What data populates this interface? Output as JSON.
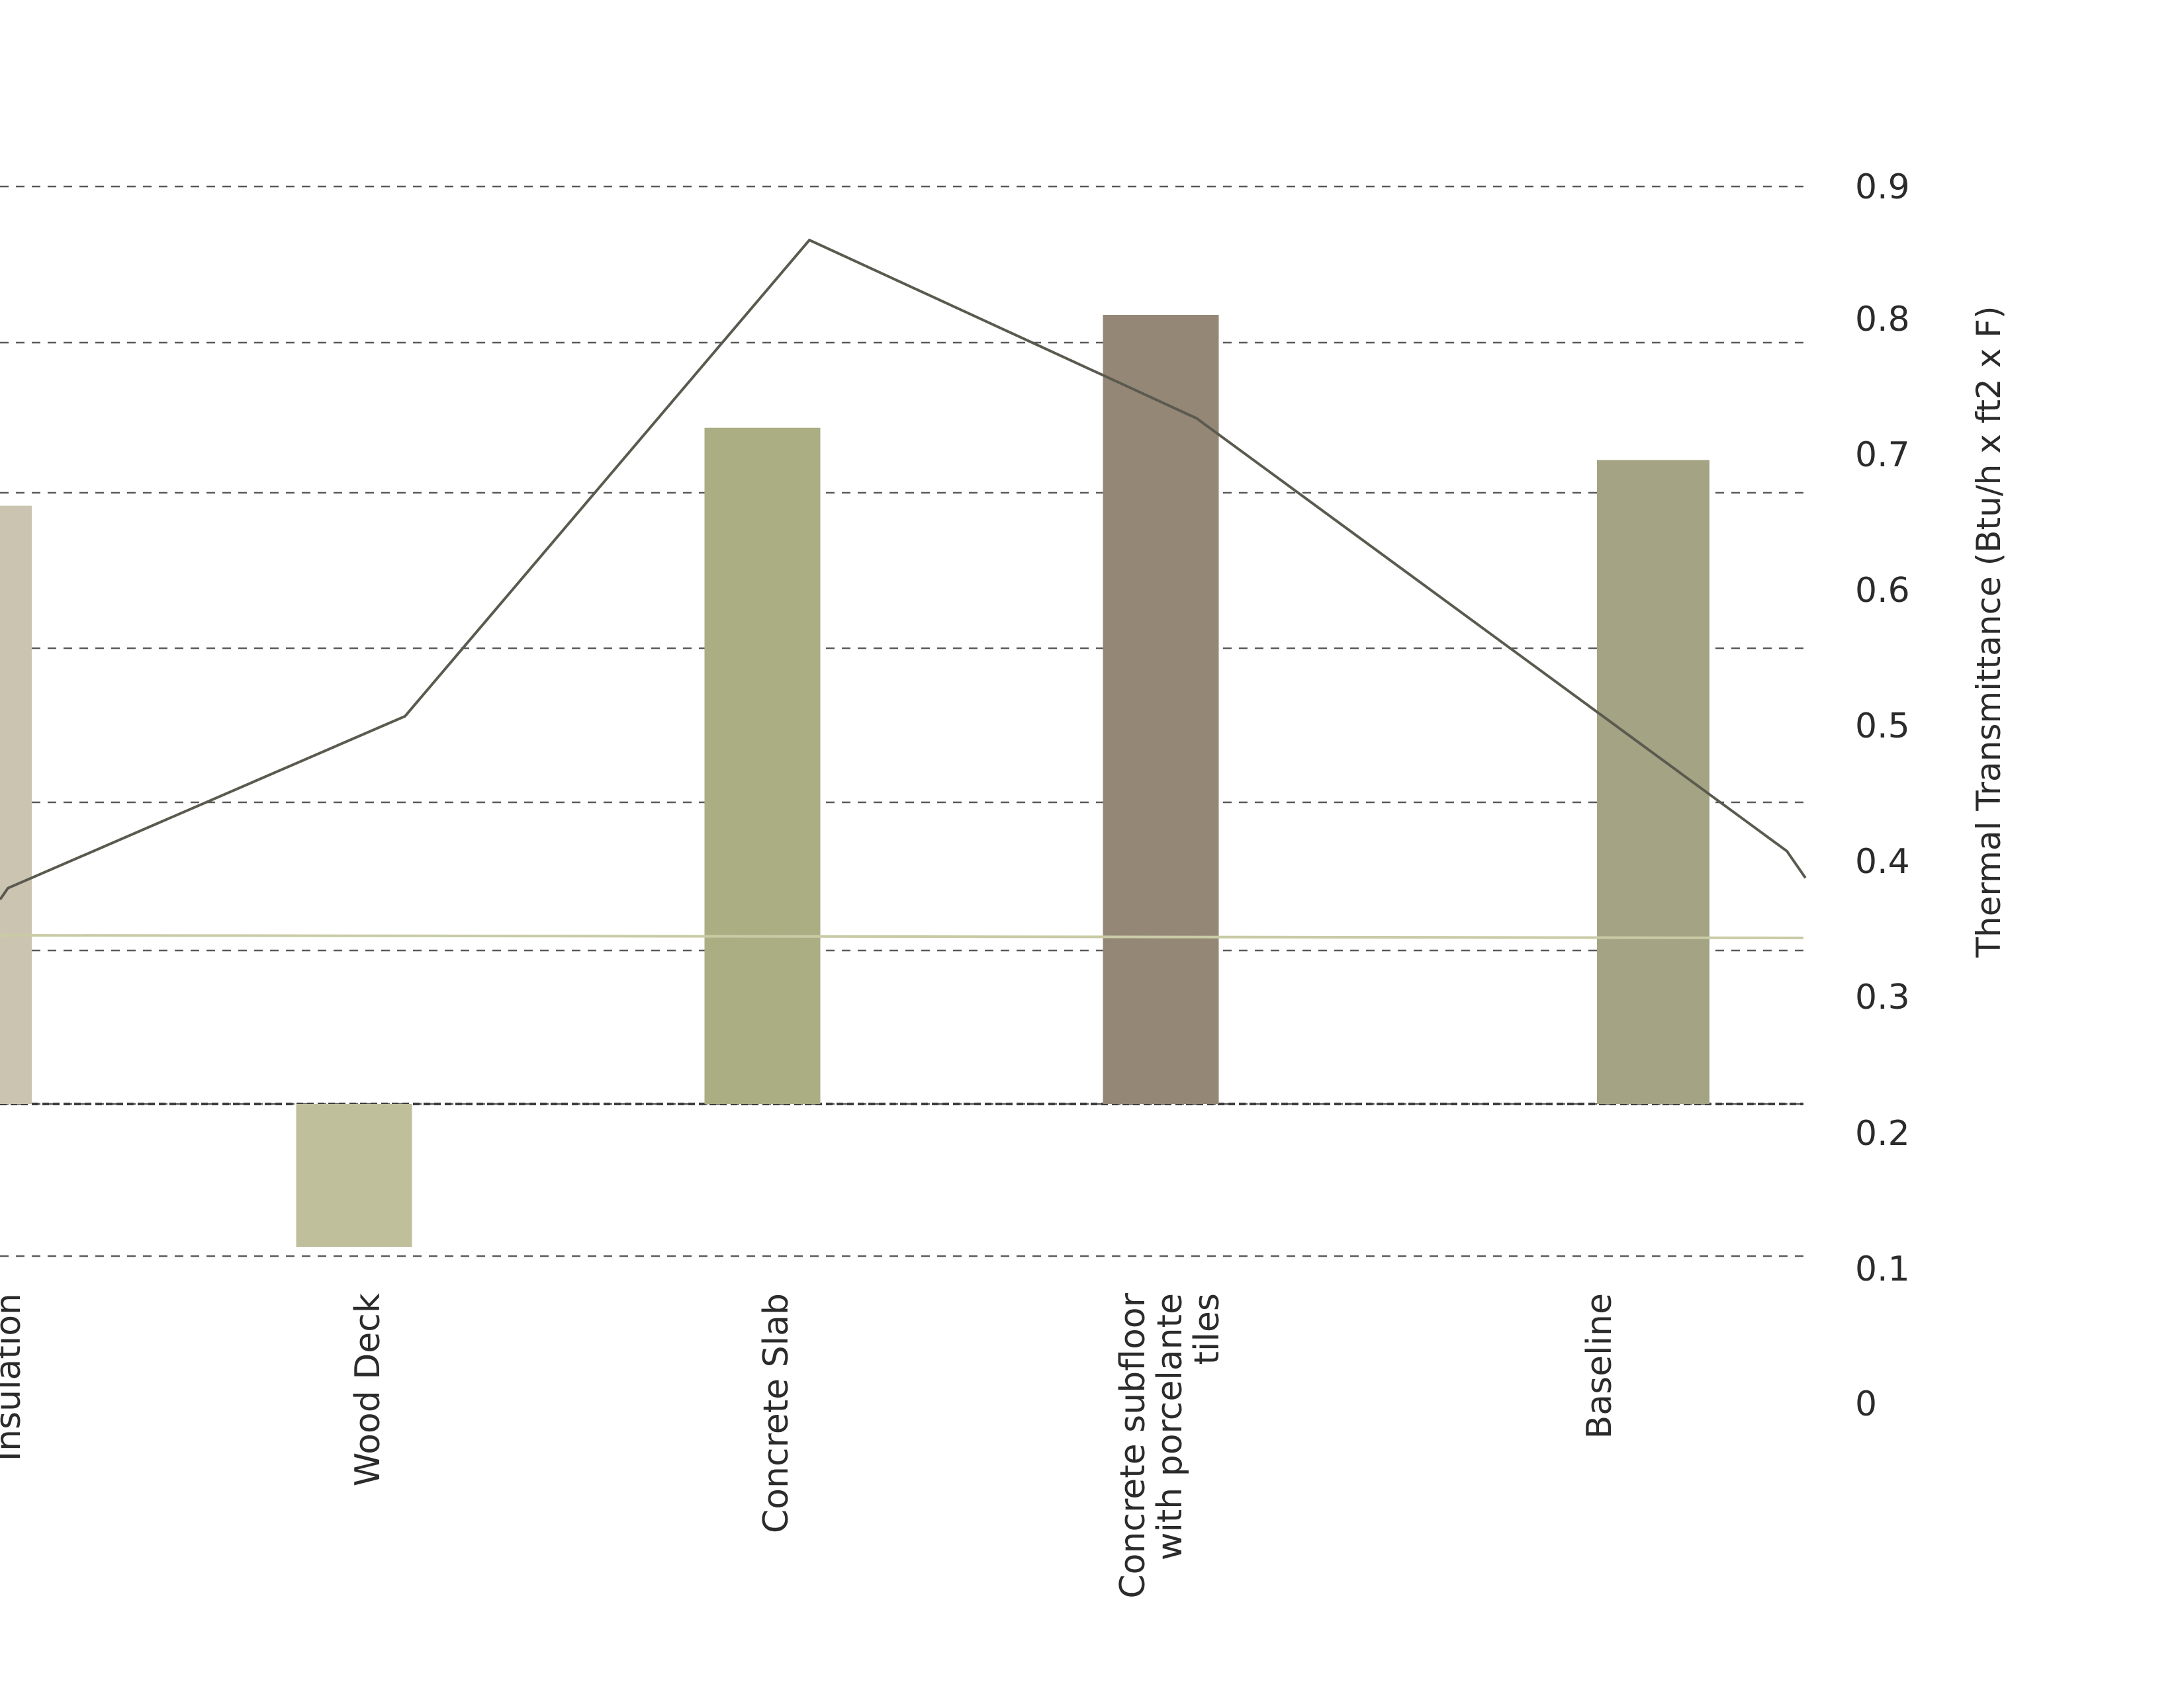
{
  "chart_data": {
    "type": "bar",
    "title": "",
    "xlabel": "",
    "ylabel": "Thermal Transmittance (Btu/h x ft2 x F)",
    "yaxis_position": "right",
    "ylim": [
      0,
      0.9
    ],
    "yticks": [
      "0",
      "0.1",
      "0.2",
      "0.3",
      "0.4",
      "0.5",
      "0.6",
      "0.7",
      "0.8",
      "0.9"
    ],
    "grid": true,
    "bar_base": 0.2,
    "categories": [
      [
        "Insulation"
      ],
      [
        "Wood Deck"
      ],
      [
        "Concrete Slab"
      ],
      [
        "Concrete subfloor",
        "with porcelante",
        "tiles"
      ],
      [
        "Baseline"
      ]
    ],
    "series": [
      {
        "kind": "bar",
        "values": [
          0.645,
          0.096,
          0.703,
          0.787,
          0.679
        ],
        "colors": [
          "#cbc4b1",
          "#bfc09b",
          "#abad83",
          "#948776",
          "#a4a384"
        ]
      },
      {
        "kind": "line",
        "x": [
          -0.05,
          0,
          1,
          2,
          3,
          4,
          4.25
        ],
        "values": [
          0.34,
          0.349,
          0.484,
          0.858,
          0.718,
          0.378,
          0.357
        ],
        "color": "#5b5a4f"
      },
      {
        "kind": "line",
        "x": [
          -0.05,
          4.25
        ],
        "values": [
          0.335,
          0.335
        ],
        "color": "#c9cba6"
      }
    ]
  }
}
